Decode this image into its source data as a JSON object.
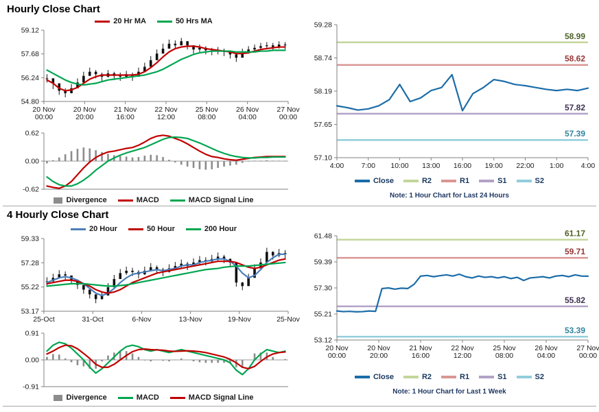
{
  "page": {
    "hourly_title": "Hourly Close Chart",
    "four_hourly_title": "4 Hourly Close Chart"
  },
  "chart_data": [
    {
      "id": "hourly_candle",
      "type": "line",
      "subtype": "candlestick-with-moving-averages",
      "ylim": [
        54.8,
        59.12
      ],
      "y_ticks": [
        "59.12",
        "57.68",
        "56.24",
        "54.80"
      ],
      "x_labels": [
        "20 Nov|00:00",
        "20 Nov|20:00",
        "21 Nov|16:00",
        "22 Nov|12:00",
        "25 Nov|08:00",
        "26 Nov|04:00",
        "27 Nov|00:00"
      ],
      "candles": {
        "color": "#111111",
        "close": [
          56.2,
          55.9,
          55.45,
          55.3,
          55.6,
          55.95,
          56.35,
          56.6,
          56.45,
          56.3,
          56.5,
          56.35,
          56.3,
          56.45,
          56.3,
          56.6,
          56.9,
          57.3,
          57.7,
          58.0,
          58.3,
          58.2,
          58.45,
          58.2,
          57.95,
          58.05,
          57.9,
          57.85,
          57.9,
          57.8,
          57.65,
          57.45,
          57.75,
          57.95,
          58.05,
          58.15,
          58.2,
          58.1,
          58.25,
          58.2
        ],
        "high": [
          56.45,
          56.2,
          55.75,
          55.6,
          55.85,
          56.2,
          56.6,
          56.85,
          56.7,
          56.55,
          56.7,
          56.6,
          56.55,
          56.65,
          56.55,
          56.85,
          57.15,
          57.55,
          57.95,
          58.3,
          58.55,
          58.5,
          58.65,
          58.45,
          58.2,
          58.25,
          58.15,
          58.05,
          58.1,
          58.0,
          57.9,
          57.75,
          58.0,
          58.15,
          58.25,
          58.35,
          58.4,
          58.35,
          58.45,
          58.4
        ],
        "low": [
          55.95,
          55.55,
          55.2,
          55.05,
          55.35,
          55.7,
          56.1,
          56.35,
          56.2,
          56.05,
          56.25,
          56.1,
          56.05,
          56.2,
          56.05,
          56.35,
          56.65,
          57.05,
          57.45,
          57.75,
          58.05,
          57.95,
          58.2,
          57.95,
          57.7,
          57.8,
          57.65,
          57.6,
          57.65,
          57.55,
          57.4,
          57.2,
          57.5,
          57.7,
          57.8,
          57.9,
          57.95,
          57.85,
          58.0,
          57.95
        ]
      },
      "series": [
        {
          "name": "20 Hr MA",
          "color": "#C00000",
          "values": [
            56.1,
            55.9,
            55.6,
            55.45,
            55.5,
            55.65,
            55.9,
            56.15,
            56.3,
            56.4,
            56.4,
            56.4,
            56.4,
            56.4,
            56.4,
            56.45,
            56.6,
            56.85,
            57.15,
            57.5,
            57.8,
            58.0,
            58.1,
            58.15,
            58.15,
            58.1,
            58.0,
            57.95,
            57.9,
            57.85,
            57.8,
            57.7,
            57.7,
            57.75,
            57.85,
            57.95,
            58.0,
            58.05,
            58.1,
            58.1
          ]
        },
        {
          "name": "50 Hrs MA",
          "color": "#00A550",
          "values": [
            56.7,
            56.5,
            56.3,
            56.1,
            55.95,
            55.85,
            55.8,
            55.85,
            55.9,
            56.0,
            56.1,
            56.15,
            56.2,
            56.25,
            56.3,
            56.35,
            56.4,
            56.5,
            56.6,
            56.75,
            56.95,
            57.15,
            57.35,
            57.5,
            57.65,
            57.75,
            57.8,
            57.85,
            57.85,
            57.85,
            57.85,
            57.8,
            57.8,
            57.8,
            57.8,
            57.85,
            57.85,
            57.9,
            57.9,
            57.9
          ]
        }
      ]
    },
    {
      "id": "hourly_macd",
      "type": "bar",
      "subtype": "macd-with-signal",
      "ylim": [
        -0.62,
        0.62
      ],
      "y_ticks": [
        "0.62",
        "0.00",
        "-0.62"
      ],
      "bars": {
        "name": "Divergence",
        "color": "#8C8C8C",
        "values": [
          -0.05,
          0.02,
          0.08,
          0.15,
          0.22,
          0.27,
          0.3,
          0.28,
          0.24,
          0.2,
          0.16,
          0.13,
          0.11,
          0.1,
          0.08,
          0.09,
          0.12,
          0.14,
          0.13,
          0.09,
          0.03,
          -0.03,
          -0.08,
          -0.12,
          -0.15,
          -0.18,
          -0.19,
          -0.18,
          -0.15,
          -0.12,
          -0.1,
          -0.08,
          -0.04,
          -0.01,
          0.01,
          0.01,
          0.02,
          0.01,
          0.01,
          0.01
        ]
      },
      "series": [
        {
          "name": "MACD",
          "color": "#C00000",
          "values": [
            -0.55,
            -0.58,
            -0.6,
            -0.55,
            -0.45,
            -0.3,
            -0.15,
            -0.02,
            0.08,
            0.15,
            0.2,
            0.22,
            0.25,
            0.28,
            0.3,
            0.35,
            0.42,
            0.5,
            0.55,
            0.57,
            0.55,
            0.5,
            0.45,
            0.38,
            0.3,
            0.22,
            0.15,
            0.1,
            0.08,
            0.05,
            0.03,
            0.02,
            0.04,
            0.06,
            0.08,
            0.09,
            0.1,
            0.1,
            0.1,
            0.1
          ]
        },
        {
          "name": "MACD Signal Line",
          "color": "#00A550",
          "values": [
            -0.35,
            -0.45,
            -0.52,
            -0.55,
            -0.55,
            -0.5,
            -0.42,
            -0.32,
            -0.2,
            -0.1,
            0.0,
            0.07,
            0.13,
            0.18,
            0.22,
            0.26,
            0.3,
            0.36,
            0.42,
            0.48,
            0.52,
            0.53,
            0.52,
            0.5,
            0.45,
            0.4,
            0.34,
            0.28,
            0.22,
            0.17,
            0.13,
            0.1,
            0.08,
            0.07,
            0.07,
            0.08,
            0.08,
            0.09,
            0.09,
            0.09
          ]
        }
      ]
    },
    {
      "id": "hourly_pivot",
      "type": "line",
      "subtype": "close-with-pivot-levels",
      "ylim": [
        57.1,
        59.28
      ],
      "y_ticks": [
        "59.28",
        "58.74",
        "58.19",
        "57.65",
        "57.10"
      ],
      "x_labels": [
        "4:00",
        "7:00",
        "10:00",
        "13:00",
        "16:00",
        "19:00",
        "22:00",
        "1:00",
        "4:00"
      ],
      "series": [
        {
          "name": "Close",
          "color": "#1B6CA8",
          "values": [
            57.95,
            57.92,
            57.88,
            57.9,
            57.95,
            58.05,
            58.3,
            58.02,
            58.08,
            58.2,
            58.25,
            58.46,
            57.87,
            58.15,
            58.25,
            58.38,
            58.35,
            58.3,
            58.28,
            58.25,
            58.22,
            58.2,
            58.22,
            58.2,
            58.24
          ]
        }
      ],
      "hlines": [
        {
          "name": "R2",
          "value": 58.99,
          "label": "58.99",
          "color": "#C3D69B",
          "label_color": "#4F6228"
        },
        {
          "name": "R1",
          "value": 58.62,
          "label": "58.62",
          "color": "#D99694",
          "label_color": "#943634"
        },
        {
          "name": "S1",
          "value": 57.82,
          "label": "57.82",
          "color": "#B3A2C7",
          "label_color": "#3F3151"
        },
        {
          "name": "S2",
          "value": 57.39,
          "label": "57.39",
          "color": "#92CDDC",
          "label_color": "#31859C"
        }
      ],
      "note": "Note: 1 Hour Chart for Last 24 Hours"
    },
    {
      "id": "fourh_candle",
      "type": "line",
      "subtype": "candlestick-with-moving-averages",
      "ylim": [
        53.17,
        59.33
      ],
      "y_ticks": [
        "59.33",
        "57.28",
        "55.22",
        "53.17"
      ],
      "x_labels": [
        "25-Oct",
        "31-Oct",
        "6-Nov",
        "13-Nov",
        "19-Nov",
        "25-Nov"
      ],
      "candles": {
        "color": "#111111",
        "close": [
          55.7,
          56.0,
          56.3,
          56.2,
          55.8,
          55.4,
          55.0,
          54.6,
          54.2,
          54.5,
          55.2,
          55.9,
          56.4,
          56.6,
          56.5,
          56.3,
          56.6,
          56.9,
          56.7,
          56.5,
          56.8,
          57.0,
          57.2,
          57.0,
          57.3,
          57.5,
          57.4,
          57.6,
          57.8,
          57.6,
          57.3,
          55.6,
          55.3,
          56.0,
          56.8,
          57.3,
          58.2,
          57.9,
          58.1,
          58.0
        ],
        "high": [
          56.05,
          56.35,
          56.65,
          56.55,
          56.15,
          55.75,
          55.35,
          54.95,
          54.55,
          54.85,
          55.55,
          56.25,
          56.75,
          56.95,
          56.85,
          56.65,
          56.95,
          57.25,
          57.05,
          56.85,
          57.15,
          57.35,
          57.55,
          57.35,
          57.65,
          57.85,
          57.75,
          57.95,
          58.15,
          57.95,
          57.65,
          55.95,
          55.65,
          56.35,
          57.15,
          57.65,
          58.55,
          58.25,
          58.45,
          58.35
        ],
        "low": [
          55.35,
          55.65,
          55.95,
          55.85,
          55.45,
          55.05,
          54.65,
          54.25,
          53.85,
          54.15,
          54.85,
          55.55,
          56.05,
          56.25,
          56.15,
          55.95,
          56.25,
          56.55,
          56.35,
          56.15,
          56.45,
          56.65,
          56.85,
          56.65,
          56.95,
          57.15,
          57.05,
          57.25,
          57.45,
          57.25,
          56.95,
          55.25,
          54.95,
          55.65,
          56.45,
          56.95,
          57.85,
          57.55,
          57.75,
          57.65
        ]
      },
      "series": [
        {
          "name": "20 Hour",
          "color": "#4A7EBB",
          "values": [
            55.6,
            55.8,
            56.0,
            56.1,
            56.0,
            55.8,
            55.5,
            55.1,
            54.7,
            54.5,
            54.7,
            55.1,
            55.6,
            56.0,
            56.3,
            56.4,
            56.5,
            56.6,
            56.7,
            56.6,
            56.7,
            56.8,
            57.0,
            57.1,
            57.1,
            57.3,
            57.4,
            57.5,
            57.6,
            57.6,
            57.4,
            57.0,
            56.4,
            56.0,
            56.2,
            56.7,
            57.3,
            57.7,
            58.0,
            58.0
          ]
        },
        {
          "name": "50 Hour",
          "color": "#C00000",
          "values": [
            55.5,
            55.6,
            55.7,
            55.8,
            55.8,
            55.7,
            55.5,
            55.3,
            55.0,
            54.8,
            54.7,
            54.8,
            55.0,
            55.3,
            55.6,
            55.8,
            56.0,
            56.2,
            56.4,
            56.5,
            56.6,
            56.7,
            56.8,
            56.9,
            57.0,
            57.1,
            57.2,
            57.3,
            57.4,
            57.4,
            57.4,
            57.3,
            57.1,
            56.9,
            56.8,
            56.9,
            57.1,
            57.3,
            57.5,
            57.6
          ]
        },
        {
          "name": "200 Hour",
          "color": "#00A550",
          "values": [
            55.3,
            55.35,
            55.4,
            55.45,
            55.5,
            55.5,
            55.5,
            55.45,
            55.4,
            55.35,
            55.3,
            55.3,
            55.35,
            55.4,
            55.5,
            55.6,
            55.7,
            55.8,
            55.9,
            56.0,
            56.1,
            56.2,
            56.3,
            56.4,
            56.5,
            56.6,
            56.7,
            56.75,
            56.8,
            56.9,
            56.95,
            57.0,
            57.0,
            57.0,
            57.05,
            57.1,
            57.15,
            57.2,
            57.25,
            57.3
          ]
        }
      ]
    },
    {
      "id": "fourh_macd",
      "type": "bar",
      "subtype": "macd-with-signal",
      "ylim": [
        -0.91,
        0.91
      ],
      "y_ticks": [
        "0.91",
        "0.00",
        "-0.91"
      ],
      "bars": {
        "name": "Divergence",
        "color": "#8C8C8C",
        "values": [
          0.1,
          0.2,
          0.18,
          0.05,
          -0.08,
          -0.18,
          -0.22,
          -0.3,
          -0.3,
          -0.05,
          0.15,
          0.25,
          0.3,
          0.3,
          0.22,
          0.1,
          -0.02,
          -0.05,
          0.01,
          -0.03,
          -0.05,
          0.01,
          0.05,
          -0.01,
          -0.05,
          -0.08,
          -0.1,
          -0.1,
          -0.1,
          -0.1,
          -0.12,
          -0.25,
          -0.25,
          0.0,
          0.22,
          0.25,
          0.25,
          0.1,
          0.0,
          0.03
        ]
      },
      "series": [
        {
          "name": "MACD",
          "color": "#00A550",
          "values": [
            0.3,
            0.5,
            0.6,
            0.55,
            0.4,
            0.2,
            0.0,
            -0.25,
            -0.45,
            -0.3,
            -0.1,
            0.1,
            0.3,
            0.45,
            0.5,
            0.45,
            0.35,
            0.3,
            0.35,
            0.3,
            0.25,
            0.3,
            0.35,
            0.3,
            0.25,
            0.2,
            0.15,
            0.1,
            0.05,
            0.0,
            -0.1,
            -0.35,
            -0.5,
            -0.3,
            0.0,
            0.2,
            0.35,
            0.3,
            0.25,
            0.3
          ]
        },
        {
          "name": "MACD Signal Line",
          "color": "#C00000",
          "values": [
            0.2,
            0.3,
            0.42,
            0.5,
            0.48,
            0.38,
            0.22,
            0.05,
            -0.15,
            -0.25,
            -0.25,
            -0.15,
            0.0,
            0.15,
            0.28,
            0.35,
            0.37,
            0.35,
            0.34,
            0.33,
            0.3,
            0.29,
            0.3,
            0.31,
            0.3,
            0.28,
            0.25,
            0.2,
            0.15,
            0.1,
            0.02,
            -0.1,
            -0.25,
            -0.3,
            -0.22,
            -0.05,
            0.1,
            0.2,
            0.25,
            0.27
          ]
        }
      ]
    },
    {
      "id": "fourh_pivot",
      "type": "line",
      "subtype": "close-with-pivot-levels",
      "ylim": [
        53.12,
        61.48
      ],
      "y_ticks": [
        "61.48",
        "59.39",
        "57.30",
        "55.21",
        "53.12"
      ],
      "x_labels": [
        "20 Nov|00:00",
        "20 Nov|20:00",
        "21 Nov|16:00",
        "22 Nov|12:00",
        "25 Nov|08:00",
        "26 Nov|04:00",
        "27 Nov|00:00"
      ],
      "series": [
        {
          "name": "Close",
          "color": "#1B6CA8",
          "values": [
            55.45,
            55.4,
            55.42,
            55.38,
            55.4,
            55.45,
            55.42,
            57.25,
            57.3,
            57.2,
            57.28,
            57.25,
            57.6,
            58.25,
            58.3,
            58.2,
            58.28,
            58.35,
            58.25,
            58.4,
            58.2,
            58.1,
            58.25,
            58.15,
            58.2,
            58.1,
            58.2,
            58.05,
            58.15,
            57.9,
            58.1,
            58.15,
            58.2,
            58.1,
            58.25,
            58.3,
            58.2,
            58.35,
            58.25,
            58.24
          ]
        }
      ],
      "hlines": [
        {
          "name": "R2",
          "value": 61.17,
          "label": "61.17",
          "color": "#C3D69B",
          "label_color": "#4F6228"
        },
        {
          "name": "R1",
          "value": 59.71,
          "label": "59.71",
          "color": "#D99694",
          "label_color": "#943634"
        },
        {
          "name": "S1",
          "value": 55.82,
          "label": "55.82",
          "color": "#B3A2C7",
          "label_color": "#3F3151"
        },
        {
          "name": "S2",
          "value": 53.39,
          "label": "53.39",
          "color": "#92CDDC",
          "label_color": "#31859C"
        }
      ],
      "note": "Note: 1 Hour Chart for Last 1 Week"
    }
  ]
}
